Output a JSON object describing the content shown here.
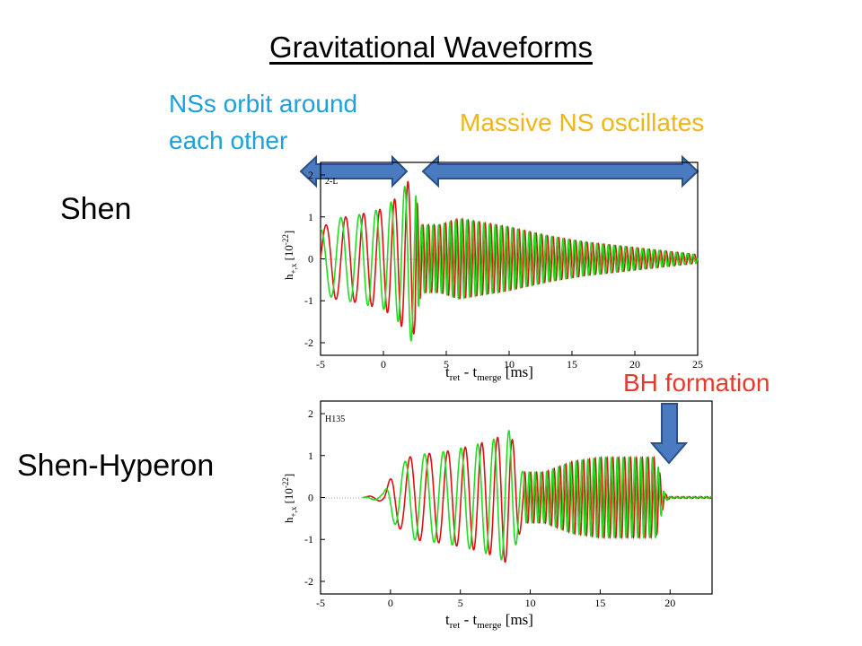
{
  "title": "Gravitational Waveforms",
  "annotations": {
    "orbit_line1": "NSs orbit around",
    "orbit_line2": "each other",
    "massive": "Massive NS oscillates",
    "bh": "BH formation"
  },
  "colors": {
    "orbit_text": "#1ea0dd",
    "massive_text": "#f0b51a",
    "bh_text": "#e63a2a",
    "arrow_fill": "#4a7bc0",
    "arrow_stroke": "#2b4f86",
    "h_plus": "#e01010",
    "h_cross": "#22dd22"
  },
  "model_labels": {
    "shen": "Shen",
    "hyperon": "Shen-Hyperon"
  },
  "chart_data": [
    {
      "type": "line",
      "model": "Shen",
      "panel_label": "2-L",
      "xlabel": "t_ret - t_merge [ms]",
      "ylabel": "h_+,x [10^-22]",
      "xlim": [
        -5,
        25
      ],
      "ylim": [
        -2.3,
        2.3
      ],
      "xticks": [
        -5,
        0,
        5,
        10,
        15,
        20,
        25
      ],
      "yticks": [
        -2,
        -1,
        0,
        1,
        2
      ],
      "series": [
        {
          "color": "#e01010",
          "phase": 0.0,
          "envelope": [
            [
              -5,
              0.7
            ],
            [
              -4,
              0.95
            ],
            [
              -2,
              1.05
            ],
            [
              0,
              1.2
            ],
            [
              1.2,
              1.5
            ],
            [
              2.3,
              2.0
            ],
            [
              3.0,
              0.8
            ],
            [
              4.5,
              0.8
            ],
            [
              6,
              0.95
            ],
            [
              8,
              0.85
            ],
            [
              10,
              0.75
            ],
            [
              13,
              0.55
            ],
            [
              16,
              0.4
            ],
            [
              19,
              0.3
            ],
            [
              22,
              0.2
            ],
            [
              25,
              0.1
            ]
          ]
        },
        {
          "color": "#22dd22",
          "phase": 1.5708,
          "envelope": [
            [
              -5,
              0.7
            ],
            [
              -4,
              0.95
            ],
            [
              -2,
              1.05
            ],
            [
              0,
              1.2
            ],
            [
              1.2,
              1.5
            ],
            [
              2.3,
              2.0
            ],
            [
              3.0,
              0.8
            ],
            [
              4.5,
              0.8
            ],
            [
              6,
              0.95
            ],
            [
              8,
              0.85
            ],
            [
              10,
              0.75
            ],
            [
              13,
              0.55
            ],
            [
              16,
              0.4
            ],
            [
              19,
              0.3
            ],
            [
              22,
              0.2
            ],
            [
              25,
              0.1
            ]
          ]
        }
      ],
      "inspiral_period_ms": [
        1.7,
        0.95
      ],
      "merger_ms": 2.5,
      "remnant_period_ms": 0.45
    },
    {
      "type": "line",
      "model": "Shen-Hyperon",
      "panel_label": "H135",
      "xlabel": "t_ret - t_merge [ms]",
      "ylabel": "h_+,x [10^-22]",
      "xlim": [
        -5,
        23
      ],
      "ylim": [
        -2.3,
        2.3
      ],
      "xticks": [
        -5,
        0,
        5,
        10,
        15,
        20
      ],
      "yticks": [
        -2,
        -1,
        0,
        1,
        2
      ],
      "series": [
        {
          "color": "#e01010",
          "phase": 0.0,
          "envelope": [
            [
              -2,
              0.0
            ],
            [
              -0.5,
              0.1
            ],
            [
              0.2,
              0.6
            ],
            [
              1.5,
              1.0
            ],
            [
              4,
              1.1
            ],
            [
              6,
              1.25
            ],
            [
              7.5,
              1.4
            ],
            [
              8.5,
              1.6
            ],
            [
              9.5,
              0.6
            ],
            [
              11,
              0.6
            ],
            [
              13,
              0.85
            ],
            [
              15,
              0.95
            ],
            [
              17.5,
              0.95
            ],
            [
              19,
              0.95
            ],
            [
              19.6,
              0.1
            ],
            [
              20,
              0.02
            ],
            [
              23,
              0.02
            ]
          ]
        },
        {
          "color": "#22dd22",
          "phase": 1.5708,
          "envelope": [
            [
              -2,
              0.0
            ],
            [
              -0.5,
              0.1
            ],
            [
              0.2,
              0.6
            ],
            [
              1.5,
              1.0
            ],
            [
              4,
              1.1
            ],
            [
              6,
              1.25
            ],
            [
              7.5,
              1.4
            ],
            [
              8.5,
              1.6
            ],
            [
              9.5,
              0.6
            ],
            [
              11,
              0.6
            ],
            [
              13,
              0.85
            ],
            [
              15,
              0.95
            ],
            [
              17.5,
              0.95
            ],
            [
              19,
              0.95
            ],
            [
              19.6,
              0.1
            ],
            [
              20,
              0.02
            ],
            [
              23,
              0.02
            ]
          ]
        }
      ],
      "inspiral_period_ms": [
        1.6,
        1.0
      ],
      "merger_ms": 9.5,
      "collapse_ms": 19.5,
      "remnant_period_ms": 0.42
    }
  ]
}
